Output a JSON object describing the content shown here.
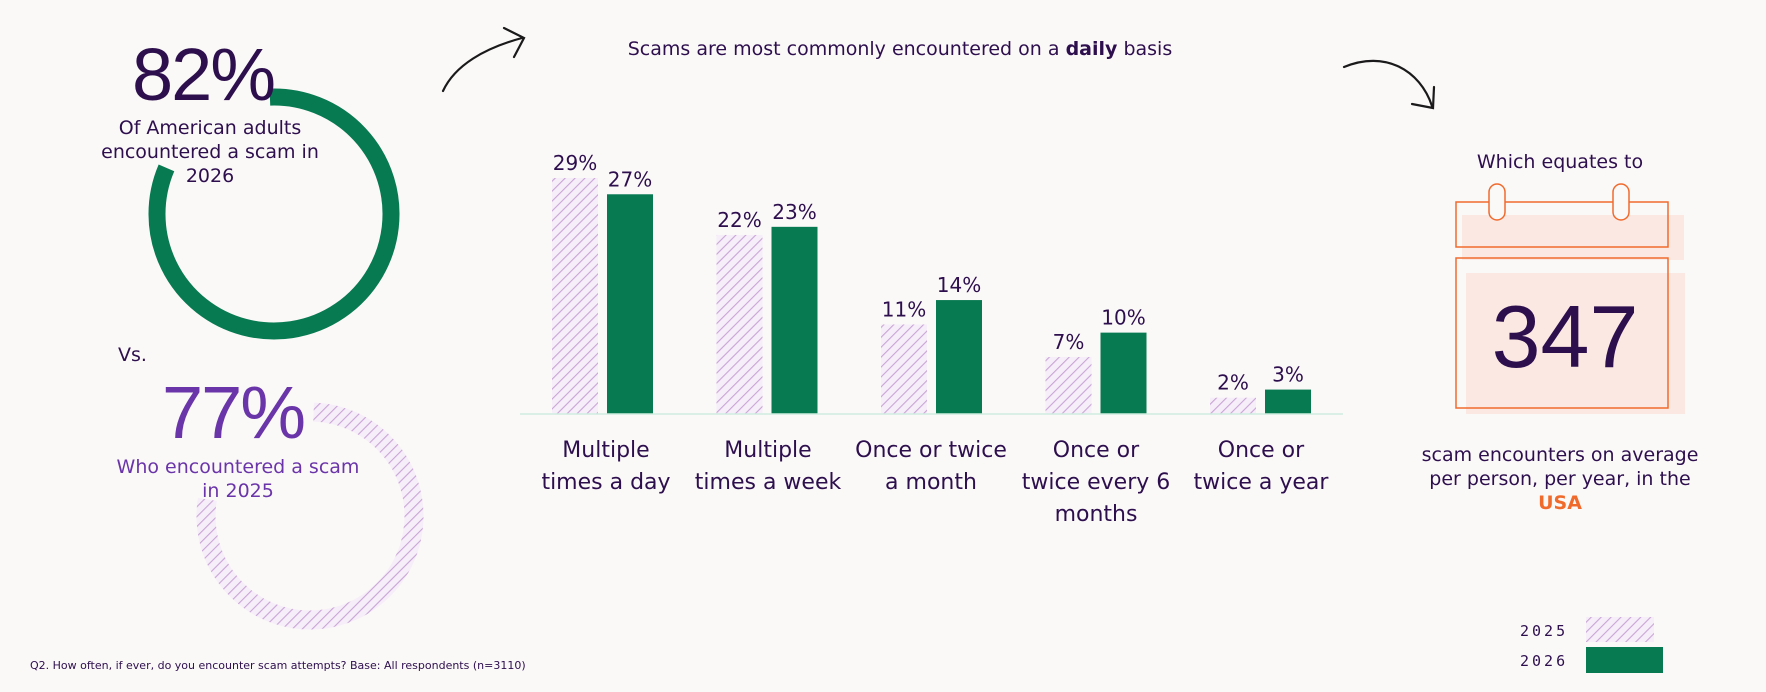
{
  "stat_2026": {
    "percent": "82%",
    "value": 82,
    "caption": "Of American adults encountered a scam in 2026"
  },
  "vs_label": "Vs.",
  "stat_2025": {
    "percent": "77%",
    "value": 77,
    "caption": "Who encountered a scam in 2025"
  },
  "chart_title": {
    "prefix": "Scams are most commonly encountered on a ",
    "emphasis": "daily",
    "suffix": " basis"
  },
  "colors": {
    "green": "#077a52",
    "lavender": "#c9a5d6",
    "dark_purple": "#2d0f4d",
    "purple": "#6a35a8",
    "orange": "#f06a2c",
    "calendar_fill": "#fce8e3"
  },
  "chart_data": {
    "type": "bar",
    "categories": [
      "Multiple times a day",
      "Multiple times a week",
      "Once or twice a month",
      "Once or twice every 6 months",
      "Once or twice a year"
    ],
    "series": [
      {
        "name": "2025",
        "values": [
          29,
          22,
          11,
          7,
          2
        ],
        "labels": [
          "29%",
          "22%",
          "11%",
          "7%",
          "2%"
        ],
        "style": "hatched-lavender"
      },
      {
        "name": "2026",
        "values": [
          27,
          23,
          14,
          10,
          3
        ],
        "labels": [
          "27%",
          "23%",
          "14%",
          "10%",
          "3%"
        ],
        "style": "solid-green"
      }
    ],
    "ylim": [
      0,
      29
    ],
    "grid": false,
    "legend_placement": "bottom-right"
  },
  "category_labels": [
    [
      "Multiple",
      "times a day"
    ],
    [
      "Multiple",
      "times a week"
    ],
    [
      "Once or twice",
      "a month"
    ],
    [
      "Once or",
      "twice every 6",
      "months"
    ],
    [
      "Once or",
      "twice a year"
    ]
  ],
  "right_panel": {
    "equates": "Which equates to",
    "number": "347",
    "encounters_prefix": "scam encounters on average per person, per year, in the ",
    "country": "USA",
    "icon": "calendar-icon"
  },
  "legend": {
    "label_2025": "2025",
    "label_2026": "2026"
  },
  "footnote": "Q2. How often, if ever, do you encounter scam attempts? Base: All respondents (n=3110)"
}
